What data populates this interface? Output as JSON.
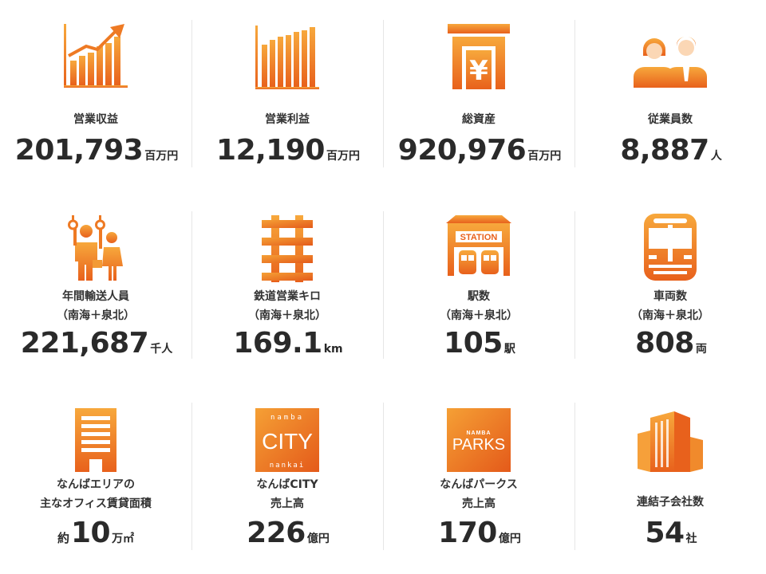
{
  "colors": {
    "accent_light": "#f6a03a",
    "accent_dark": "#e8601c",
    "text": "#2b2b2b",
    "divider": "#e6e6e6"
  },
  "items": [
    {
      "icon": "growth-chart-icon",
      "label": "営業収益",
      "prefix": "",
      "value": "201,793",
      "unit": "百万円"
    },
    {
      "icon": "bar-chart-icon",
      "label": "営業利益",
      "prefix": "",
      "value": "12,190",
      "unit": "百万円"
    },
    {
      "icon": "yen-building-icon",
      "label": "総資産",
      "prefix": "",
      "value": "920,976",
      "unit": "百万円"
    },
    {
      "icon": "employees-icon",
      "label": "従業員数",
      "prefix": "",
      "value": "8,887",
      "unit": "人"
    },
    {
      "icon": "train-passengers-icon",
      "label": "年間輸送人員\n（南海＋泉北）",
      "prefix": "",
      "value": "221,687",
      "unit": "千人"
    },
    {
      "icon": "railway-track-icon",
      "label": "鉄道営業キロ\n（南海＋泉北）",
      "prefix": "",
      "value": "169.1",
      "unit": "km"
    },
    {
      "icon": "station-icon",
      "label": "駅数\n（南海＋泉北）",
      "prefix": "",
      "value": "105",
      "unit": "駅"
    },
    {
      "icon": "train-front-icon",
      "label": "車両数\n（南海＋泉北）",
      "prefix": "",
      "value": "808",
      "unit": "両"
    },
    {
      "icon": "office-building-icon",
      "label": "なんばエリアの\n主なオフィス賃貸面積",
      "prefix": "約",
      "value": "10",
      "unit": "万㎡"
    },
    {
      "icon": "namba-city-logo-icon",
      "label": "なんばCITY\n売上高",
      "prefix": "",
      "value": "226",
      "unit": "億円"
    },
    {
      "icon": "namba-parks-logo-icon",
      "label": "なんばパークス\n売上高",
      "prefix": "",
      "value": "170",
      "unit": "億円"
    },
    {
      "icon": "subsidiaries-buildings-icon",
      "label": "連結子会社数",
      "prefix": "",
      "value": "54",
      "unit": "社"
    }
  ],
  "logos": {
    "city_top": "namba",
    "city_main": "CITY",
    "city_bottom": "nankai",
    "parks_top": "NAMBA",
    "parks_main": "PARKS",
    "station_sign": "STATION"
  }
}
